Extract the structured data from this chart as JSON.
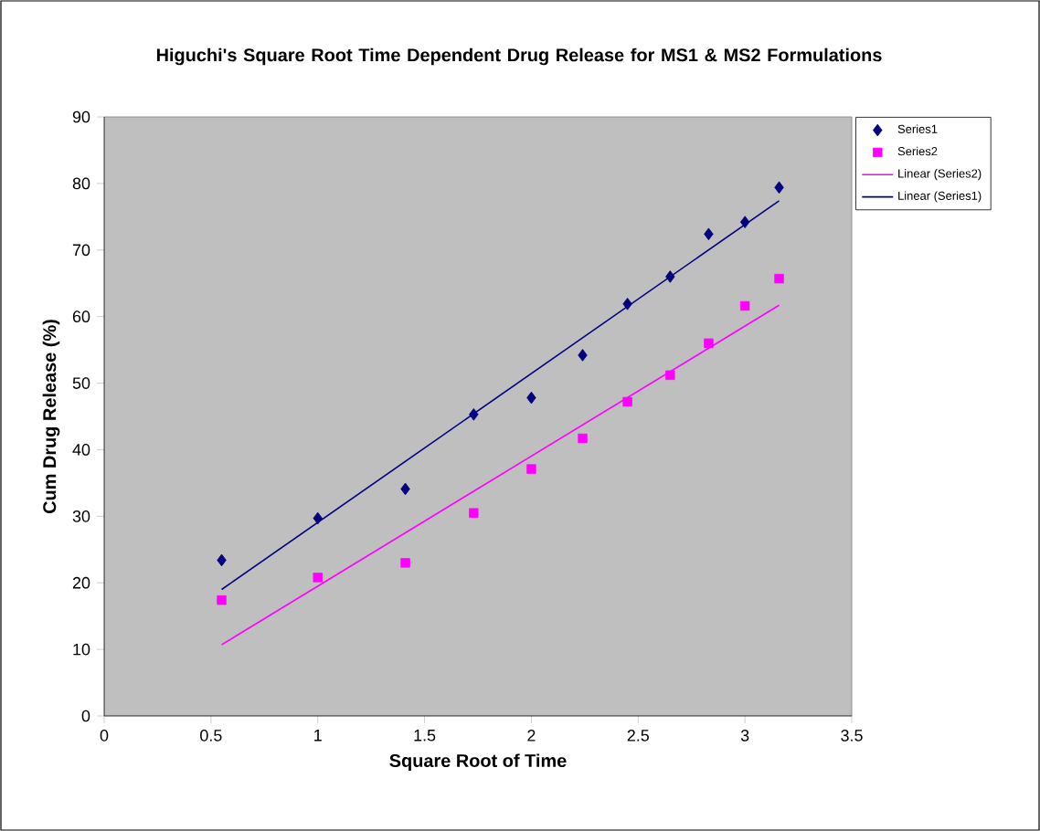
{
  "chart_data": {
    "type": "scatter",
    "title": "Higuchi's Square Root Time Dependent Drug Release for MS1 & MS2 Formulations",
    "xlabel": "Square Root of Time",
    "ylabel": "Cum Drug Release (%)",
    "xlim": [
      0,
      3.5
    ],
    "xticks": [
      0,
      0.5,
      1,
      1.5,
      2,
      2.5,
      3,
      3.5
    ],
    "ylim": [
      0,
      90
    ],
    "yticks": [
      0,
      10,
      20,
      30,
      40,
      50,
      60,
      70,
      80,
      90
    ],
    "grid": false,
    "legend": "right",
    "series": [
      {
        "name": "Series1",
        "marker": "diamond",
        "color": "#000080",
        "x": [
          0.55,
          1,
          1.41,
          1.73,
          2,
          2.24,
          2.45,
          2.65,
          2.83,
          3,
          3.16
        ],
        "values": [
          23.4,
          29.7,
          34.1,
          45.3,
          47.8,
          54.2,
          61.9,
          66.0,
          72.4,
          74.2,
          79.4
        ]
      },
      {
        "name": "Series2",
        "marker": "square",
        "color": "#ff00ff",
        "x": [
          0.55,
          1,
          1.41,
          1.73,
          2,
          2.24,
          2.45,
          2.65,
          2.83,
          3,
          3.16
        ],
        "values": [
          17.4,
          20.8,
          23.0,
          30.5,
          37.1,
          41.7,
          47.2,
          51.2,
          56.0,
          61.6,
          65.7
        ]
      },
      {
        "name": "Linear (Series2)",
        "type": "line",
        "marker": "none",
        "color": "#ff00ff",
        "x": [
          0.55,
          3.16
        ],
        "values": [
          10.7,
          61.7
        ]
      },
      {
        "name": "Linear (Series1)",
        "type": "line",
        "marker": "none",
        "color": "#000080",
        "x": [
          0.55,
          3.16
        ],
        "values": [
          19.0,
          77.4
        ]
      }
    ]
  }
}
